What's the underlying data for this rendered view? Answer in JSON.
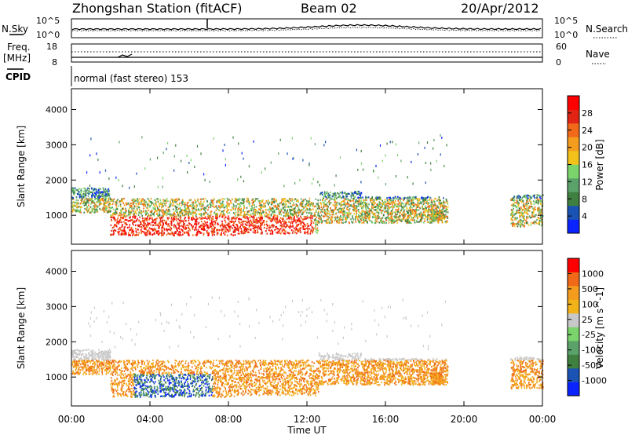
{
  "header": {
    "title": "Zhongshan Station (fitACF)",
    "beam": "Beam 02",
    "date": "20/Apr/2012"
  },
  "panels": {
    "nsky": {
      "label": "N.Sky",
      "left_ticks": [
        "10^5",
        "10^0"
      ],
      "right_label": "N.Search",
      "right_ticks": [
        "10^5",
        "10^0"
      ]
    },
    "freq": {
      "label_top": "Freq.",
      "label_unit": "[MHz]",
      "left_ticks": [
        "18",
        "8"
      ],
      "right_label": "Nave",
      "right_ticks": [
        "60",
        "0"
      ]
    },
    "cpid": {
      "label": "CPID",
      "text": "normal (fast stereo) 153"
    }
  },
  "colors": {
    "power_scale": [
      "#0b24ff",
      "#1a53b4",
      "#3f7f3f",
      "#5aa16a",
      "#7bd36b",
      "#f2c21a",
      "#f39c1e",
      "#f06a1a",
      "#e22414",
      "#ff0000"
    ],
    "velocity_scale": [
      "#0b24ff",
      "#1a53b4",
      "#3f7f3f",
      "#5aa16a",
      "#7bd36b",
      "#c8c8c8",
      "#f2b21a",
      "#f39c1e",
      "#f06a1a",
      "#ff0000"
    ]
  },
  "chart_data": [
    {
      "type": "heatmap",
      "name": "power",
      "xlabel": "",
      "ylabel": "Slant Range [km]",
      "ylim": [
        180,
        4590
      ],
      "y_ticks": [
        "1000",
        "2000",
        "3000",
        "4000"
      ],
      "x_ticks": [
        "00:00",
        "04:00",
        "08:00",
        "12:00",
        "16:00",
        "20:00",
        "00:00"
      ],
      "colorbar": {
        "label": "Power [dB]",
        "ticks": [
          "28",
          "24",
          "20",
          "16",
          "12",
          "8",
          "4"
        ],
        "range": [
          0,
          30
        ]
      }
    },
    {
      "type": "heatmap",
      "name": "velocity",
      "xlabel": "Time UT",
      "ylabel": "Slant Range [km]",
      "ylim": [
        180,
        4590
      ],
      "y_ticks": [
        "1000",
        "2000",
        "3000",
        "4000"
      ],
      "x_ticks": [
        "00:00",
        "04:00",
        "08:00",
        "12:00",
        "16:00",
        "20:00",
        "00:00"
      ],
      "colorbar": {
        "label": "Velocity [m s^-1]",
        "ticks": [
          "1000",
          "500",
          "100",
          "25",
          "-25",
          "-100",
          "-500",
          "-1000"
        ]
      }
    }
  ]
}
